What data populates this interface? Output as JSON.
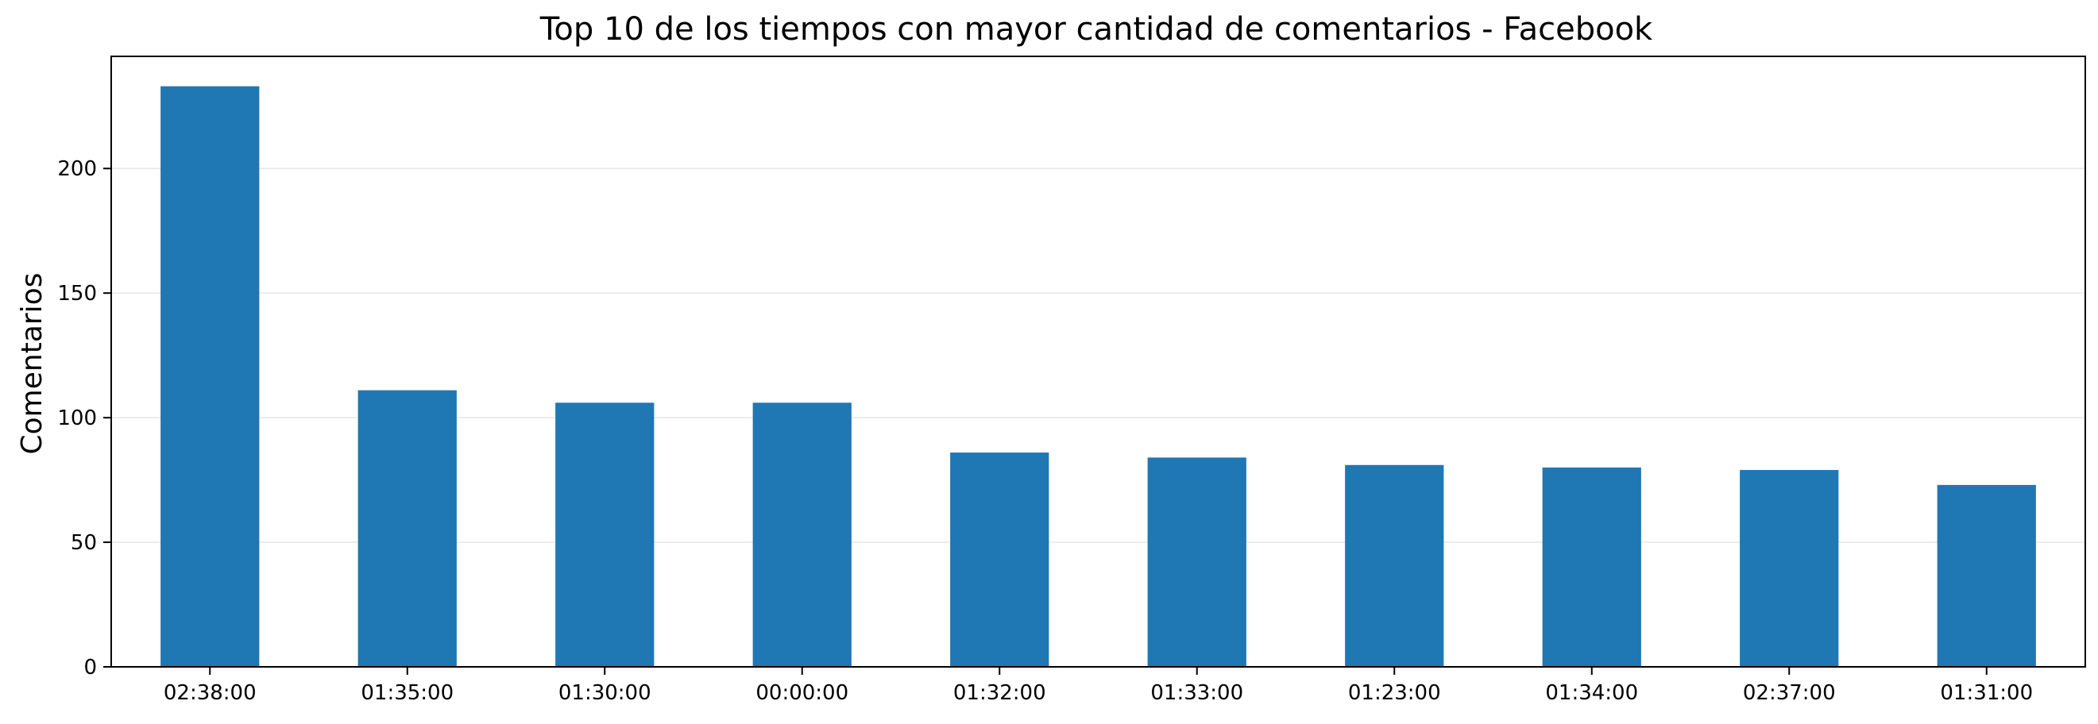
{
  "chart_data": {
    "type": "bar",
    "title": "Top 10 de los tiempos con mayor cantidad de comentarios - Facebook",
    "xlabel": "",
    "ylabel": "Comentarios",
    "categories": [
      "02:38:00",
      "01:35:00",
      "01:30:00",
      "00:00:00",
      "01:32:00",
      "01:33:00",
      "01:23:00",
      "01:34:00",
      "02:37:00",
      "01:31:00"
    ],
    "series": [
      {
        "values": [
          233,
          111,
          106,
          106,
          86,
          84,
          81,
          80,
          79,
          73
        ]
      }
    ],
    "ylim": [
      0,
      245
    ],
    "yticks": [
      0,
      50,
      100,
      150,
      200
    ],
    "grid": "horizontal",
    "legend": "none",
    "colors": {
      "bar": "#1f77b4",
      "grid": "#e6e6e6",
      "axis": "#000000"
    }
  }
}
